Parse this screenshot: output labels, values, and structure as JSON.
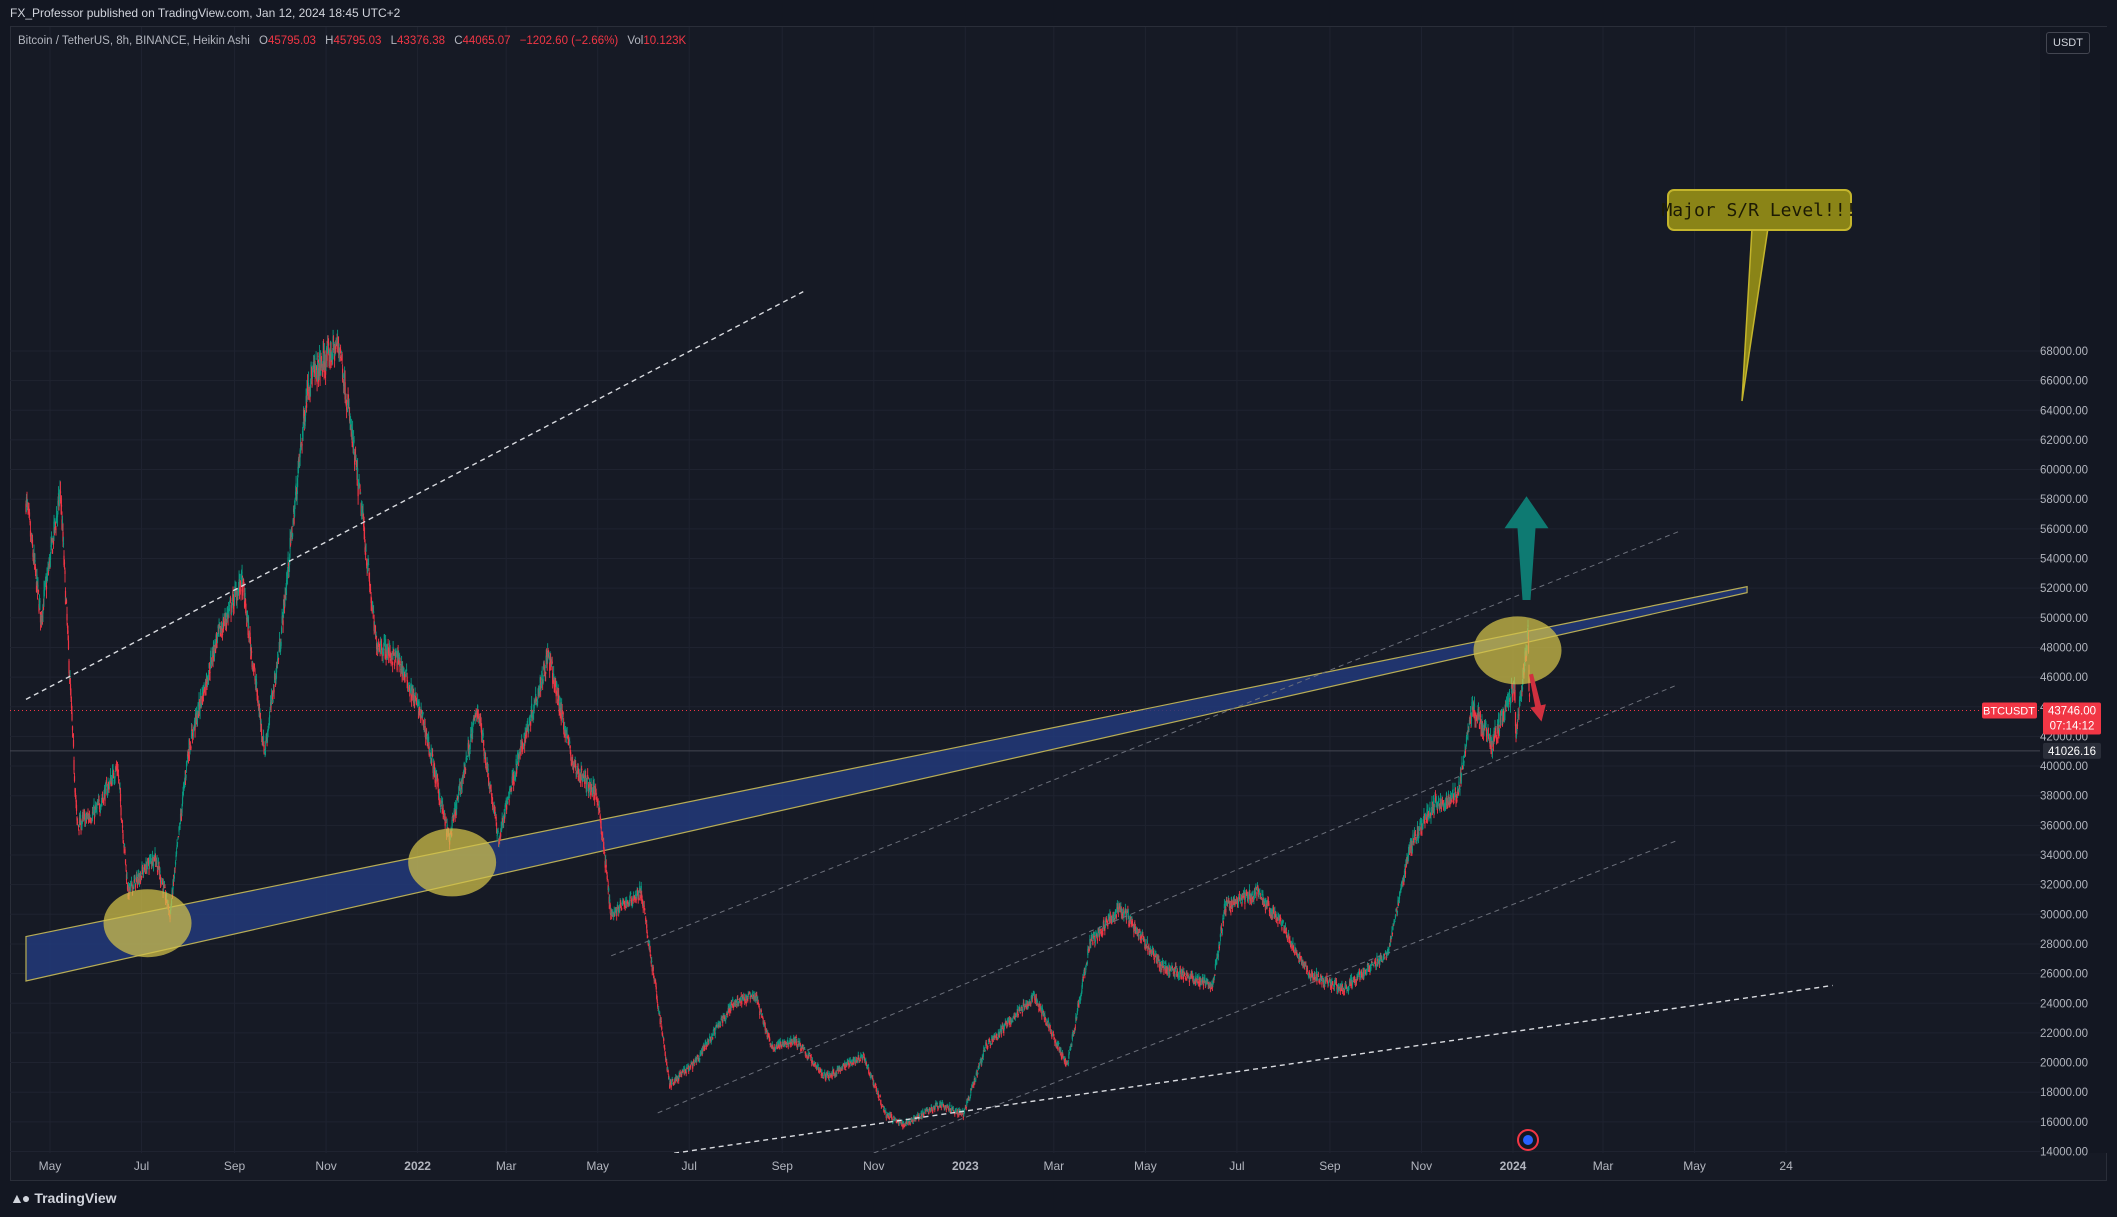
{
  "publisher": "FX_Professor published on TradingView.com, Jan 12, 2024 18:45 UTC+2",
  "legend": {
    "symbol": "Bitcoin / TetherUS, 8h, BINANCE, Heikin Ashi",
    "o_label": "O",
    "o": "45795.03",
    "h_label": "H",
    "h": "45795.03",
    "l_label": "L",
    "l": "43376.38",
    "c_label": "C",
    "c": "44065.07",
    "change": "−1202.60 (−2.66%)",
    "vol_label": "Vol",
    "vol": "10.123K"
  },
  "currency": "USDT",
  "price_labels": {
    "symbol_tag": "BTCUSDT",
    "last_price": "43746.00",
    "countdown": "07:14:12",
    "level_price": "41026.16"
  },
  "callout": "Major S/R Level!!!",
  "footer_brand": "TradingView",
  "colors": {
    "bg": "#131722",
    "up": "#089981",
    "down": "#f23645",
    "band": "#1e3a8a",
    "ellipse": "#d4c44a",
    "arrow_up": "#0e7a72",
    "arrow_down": "#d0303f"
  },
  "chart_data": {
    "type": "candlestick",
    "style": "Heikin Ashi",
    "interval": "8h",
    "exchange": "BINANCE",
    "x_range": [
      "2021-04-15",
      "2024-07-20"
    ],
    "ylim": [
      14000,
      69500
    ],
    "y_ticks": [
      14000,
      16000,
      18000,
      20000,
      22000,
      24000,
      26000,
      28000,
      30000,
      32000,
      34000,
      36000,
      38000,
      40000,
      42000,
      44000,
      46000,
      48000,
      50000,
      52000,
      54000,
      56000,
      58000,
      60000,
      62000,
      64000,
      66000,
      68000
    ],
    "x_ticks": [
      {
        "date": "2021-05-01",
        "label": "May"
      },
      {
        "date": "2021-07-01",
        "label": "Jul"
      },
      {
        "date": "2021-09-01",
        "label": "Sep"
      },
      {
        "date": "2021-11-01",
        "label": "Nov"
      },
      {
        "date": "2022-01-01",
        "label": "2022"
      },
      {
        "date": "2022-03-01",
        "label": "Mar"
      },
      {
        "date": "2022-05-01",
        "label": "May"
      },
      {
        "date": "2022-07-01",
        "label": "Jul"
      },
      {
        "date": "2022-09-01",
        "label": "Sep"
      },
      {
        "date": "2022-11-01",
        "label": "Nov"
      },
      {
        "date": "2023-01-01",
        "label": "2023"
      },
      {
        "date": "2023-03-01",
        "label": "Mar"
      },
      {
        "date": "2023-05-01",
        "label": "May"
      },
      {
        "date": "2023-07-01",
        "label": "Jul"
      },
      {
        "date": "2023-09-01",
        "label": "Sep"
      },
      {
        "date": "2023-11-01",
        "label": "Nov"
      },
      {
        "date": "2024-01-01",
        "label": "2024"
      },
      {
        "date": "2024-03-01",
        "label": "Mar"
      },
      {
        "date": "2024-05-01",
        "label": "May"
      },
      {
        "date": "2024-07-01",
        "label": "24"
      }
    ],
    "price_path": [
      [
        "2021-04-15",
        58000
      ],
      [
        "2021-04-25",
        50000
      ],
      [
        "2021-05-08",
        58500
      ],
      [
        "2021-05-19",
        36000
      ],
      [
        "2021-06-01",
        37000
      ],
      [
        "2021-06-15",
        40000
      ],
      [
        "2021-06-22",
        31500
      ],
      [
        "2021-07-10",
        34000
      ],
      [
        "2021-07-20",
        30000
      ],
      [
        "2021-08-01",
        41000
      ],
      [
        "2021-08-20",
        48500
      ],
      [
        "2021-09-06",
        52500
      ],
      [
        "2021-09-21",
        41000
      ],
      [
        "2021-10-01",
        48000
      ],
      [
        "2021-10-20",
        66000
      ],
      [
        "2021-11-10",
        68500
      ],
      [
        "2021-11-25",
        57000
      ],
      [
        "2021-12-04",
        48500
      ],
      [
        "2021-12-20",
        47000
      ],
      [
        "2022-01-05",
        43000
      ],
      [
        "2022-01-22",
        35000
      ],
      [
        "2022-02-10",
        44000
      ],
      [
        "2022-02-24",
        35000
      ],
      [
        "2022-03-05",
        39000
      ],
      [
        "2022-03-29",
        47500
      ],
      [
        "2022-04-15",
        40000
      ],
      [
        "2022-05-01",
        38000
      ],
      [
        "2022-05-10",
        30000
      ],
      [
        "2022-05-30",
        31500
      ],
      [
        "2022-06-13",
        22000
      ],
      [
        "2022-06-18",
        18500
      ],
      [
        "2022-07-05",
        20000
      ],
      [
        "2022-07-30",
        24000
      ],
      [
        "2022-08-14",
        24500
      ],
      [
        "2022-08-25",
        21000
      ],
      [
        "2022-09-10",
        21500
      ],
      [
        "2022-09-30",
        19000
      ],
      [
        "2022-10-25",
        20500
      ],
      [
        "2022-11-09",
        16500
      ],
      [
        "2022-11-21",
        15800
      ],
      [
        "2022-12-15",
        17200
      ],
      [
        "2022-12-31",
        16500
      ],
      [
        "2023-01-14",
        21000
      ],
      [
        "2023-02-16",
        24500
      ],
      [
        "2023-03-10",
        19800
      ],
      [
        "2023-03-25",
        28000
      ],
      [
        "2023-04-14",
        30500
      ],
      [
        "2023-05-12",
        26500
      ],
      [
        "2023-06-15",
        25200
      ],
      [
        "2023-06-23",
        30500
      ],
      [
        "2023-07-14",
        31500
      ],
      [
        "2023-08-01",
        29200
      ],
      [
        "2023-08-17",
        26000
      ],
      [
        "2023-09-11",
        25000
      ],
      [
        "2023-10-10",
        27500
      ],
      [
        "2023-10-24",
        34500
      ],
      [
        "2023-11-10",
        37500
      ],
      [
        "2023-11-25",
        38000
      ],
      [
        "2023-12-05",
        44000
      ],
      [
        "2023-12-18",
        41500
      ],
      [
        "2024-01-02",
        45500
      ],
      [
        "2024-01-03",
        42000
      ],
      [
        "2024-01-11",
        48900
      ],
      [
        "2024-01-12",
        44065
      ]
    ],
    "horizontal_lines": [
      {
        "price": 43746,
        "style": "dotted",
        "color": "#f23645"
      },
      {
        "price": 41026.16,
        "style": "solid",
        "color": "#434651"
      }
    ],
    "drawings": [
      {
        "type": "band",
        "name": "major-sr-band",
        "start": [
          "2021-04-15",
          27000
        ],
        "end": [
          "2024-06-05",
          51900
        ],
        "thickness_price": 3000
      },
      {
        "type": "line",
        "name": "upper-dashed-trend",
        "start": [
          "2021-04-15",
          44500
        ],
        "end": [
          "2022-09-15",
          72000
        ],
        "style": "dashed"
      },
      {
        "type": "line",
        "name": "lower-dashed-trend",
        "start": [
          "2022-06-15",
          13800
        ],
        "end": [
          "2024-08-01",
          25200
        ],
        "style": "dashed"
      },
      {
        "type": "line",
        "name": "channel-top",
        "start": [
          "2022-05-10",
          27200
        ],
        "end": [
          "2024-04-20",
          55800
        ],
        "style": "dashed-thin"
      },
      {
        "type": "line",
        "name": "channel-upper-mid",
        "start": [
          "2022-06-10",
          16600
        ],
        "end": [
          "2024-04-20",
          45500
        ],
        "style": "dashed-thin"
      },
      {
        "type": "line",
        "name": "channel-lower-mid",
        "start": [
          "2022-11-01",
          13900
        ],
        "end": [
          "2024-04-20",
          35000
        ],
        "style": "dashed-thin"
      }
    ],
    "highlights": [
      {
        "date": "2021-07-05",
        "price": 29400
      },
      {
        "date": "2022-01-24",
        "price": 33500
      },
      {
        "date": "2024-01-04",
        "price": 47800
      }
    ],
    "arrows": [
      {
        "direction": "up",
        "from": [
          "2024-01-10",
          51200
        ],
        "to": [
          "2024-01-10",
          58200
        ]
      },
      {
        "direction": "down",
        "from": [
          "2024-01-13",
          46200
        ],
        "to": [
          "2024-01-20",
          43000
        ]
      }
    ]
  }
}
